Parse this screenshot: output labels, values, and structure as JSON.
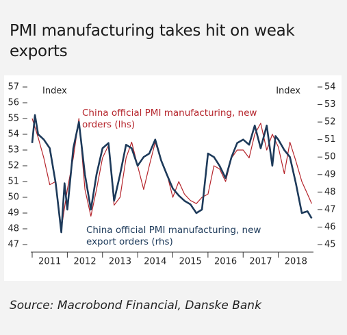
{
  "chart_data": {
    "type": "line",
    "title": "PMI manufacturing takes hit on weak exports",
    "source": "Source: Macrobond Financial, Danske Bank",
    "ylabel": "Index",
    "y2label": "Index",
    "xlim": [
      2011,
      2019
    ],
    "xticks": [
      {
        "value": 2011,
        "label": "2011"
      },
      {
        "value": 2012,
        "label": "2012"
      },
      {
        "value": 2013,
        "label": "2013"
      },
      {
        "value": 2014,
        "label": "2014"
      },
      {
        "value": 2015,
        "label": "2015"
      },
      {
        "value": 2016,
        "label": "2016"
      },
      {
        "value": 2017,
        "label": "2017"
      },
      {
        "value": 2018,
        "label": "2018"
      }
    ],
    "ylim": [
      47,
      57
    ],
    "yticks": [
      47,
      48,
      49,
      50,
      51,
      52,
      53,
      54,
      55,
      56,
      57
    ],
    "y2lim": [
      45,
      54
    ],
    "y2ticks": [
      45,
      46,
      47,
      48,
      49,
      50,
      51,
      52,
      53,
      54
    ],
    "series": [
      {
        "name": "China official PMI manufacturing, new orders (lhs)",
        "color": "#b5242b",
        "axis": "y",
        "x": [
          2011.0,
          2011.17,
          2011.33,
          2011.5,
          2011.67,
          2011.83,
          2012.0,
          2012.17,
          2012.33,
          2012.5,
          2012.67,
          2012.83,
          2013.0,
          2013.17,
          2013.33,
          2013.5,
          2013.67,
          2013.83,
          2014.0,
          2014.17,
          2014.33,
          2014.5,
          2014.67,
          2014.83,
          2015.0,
          2015.17,
          2015.33,
          2015.5,
          2015.67,
          2015.83,
          2016.0,
          2016.17,
          2016.33,
          2016.5,
          2016.67,
          2016.83,
          2017.0,
          2017.17,
          2017.33,
          2017.5,
          2017.67,
          2017.83,
          2018.0,
          2018.17,
          2018.33,
          2018.5,
          2018.67,
          2018.83,
          2018.95
        ],
        "values": [
          55.0,
          53.8,
          52.5,
          50.8,
          51.0,
          48.0,
          50.5,
          52.5,
          55.0,
          50.5,
          48.8,
          50.5,
          52.5,
          53.3,
          49.5,
          50.0,
          52.5,
          53.5,
          52.0,
          50.5,
          52.0,
          53.5,
          52.3,
          51.5,
          50.0,
          51.0,
          50.2,
          49.8,
          49.6,
          50.0,
          50.2,
          52.0,
          51.8,
          51.0,
          52.5,
          53.0,
          53.0,
          52.5,
          54.0,
          54.7,
          53.0,
          54.0,
          53.2,
          51.5,
          53.5,
          52.3,
          51.0,
          50.2,
          49.6
        ]
      },
      {
        "name": "China official PMI manufacturing, new export orders (rhs)",
        "color": "#1d3a5a",
        "axis": "y2",
        "x": [
          2011.0,
          2011.08,
          2011.17,
          2011.33,
          2011.5,
          2011.67,
          2011.83,
          2011.92,
          2012.0,
          2012.17,
          2012.33,
          2012.5,
          2012.67,
          2012.83,
          2013.0,
          2013.17,
          2013.33,
          2013.5,
          2013.67,
          2013.83,
          2014.0,
          2014.17,
          2014.33,
          2014.5,
          2014.67,
          2014.83,
          2015.0,
          2015.17,
          2015.33,
          2015.5,
          2015.67,
          2015.83,
          2016.0,
          2016.17,
          2016.33,
          2016.5,
          2016.67,
          2016.83,
          2017.0,
          2017.17,
          2017.33,
          2017.5,
          2017.67,
          2017.83,
          2017.92,
          2018.0,
          2018.17,
          2018.33,
          2018.5,
          2018.67,
          2018.83,
          2018.95
        ],
        "values": [
          50.8,
          52.4,
          51.3,
          51.0,
          50.5,
          48.5,
          45.7,
          48.5,
          47.0,
          50.5,
          52.0,
          49.0,
          47.0,
          49.0,
          50.5,
          50.8,
          47.5,
          49.0,
          50.7,
          50.5,
          49.5,
          50.0,
          50.2,
          51.0,
          49.8,
          49.0,
          48.2,
          47.8,
          47.5,
          47.3,
          46.8,
          47.0,
          50.2,
          50.0,
          49.5,
          48.8,
          50.0,
          50.8,
          51.0,
          50.7,
          51.8,
          50.5,
          51.8,
          49.5,
          51.2,
          51.0,
          50.4,
          50.0,
          48.5,
          46.8,
          46.9,
          46.5
        ]
      }
    ]
  }
}
